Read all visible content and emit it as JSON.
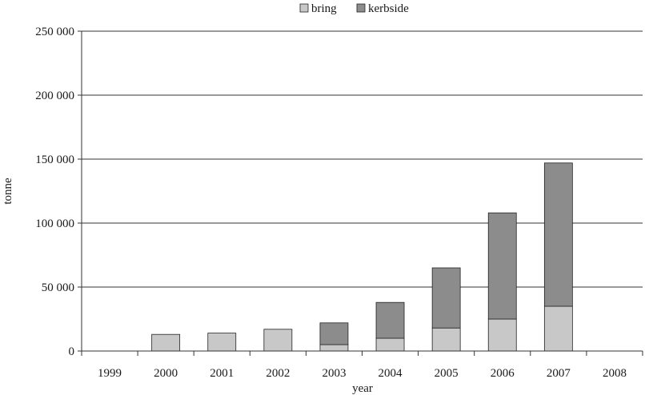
{
  "chart_data": {
    "type": "bar",
    "stacked": true,
    "categories": [
      "1999",
      "2000",
      "2001",
      "2002",
      "2003",
      "2004",
      "2005",
      "2006",
      "2007",
      "2008"
    ],
    "series": [
      {
        "name": "bring",
        "color": "#c8c8c8",
        "values": [
          0,
          13000,
          14000,
          17000,
          5000,
          10000,
          18000,
          25000,
          35000,
          0
        ]
      },
      {
        "name": "kerbside",
        "color": "#8c8c8c",
        "values": [
          0,
          0,
          0,
          0,
          17000,
          28000,
          47000,
          83000,
          112000,
          0
        ]
      }
    ],
    "title": "",
    "xlabel": "year",
    "ylabel": "tonne",
    "ylim": [
      0,
      250000
    ],
    "yticks": [
      0,
      50000,
      100000,
      150000,
      200000,
      250000
    ],
    "ytick_labels": [
      "0",
      "50 000",
      "100 000",
      "150 000",
      "200 000",
      "250 000"
    ],
    "grid": "horizontal",
    "legend_position": "top-center"
  }
}
